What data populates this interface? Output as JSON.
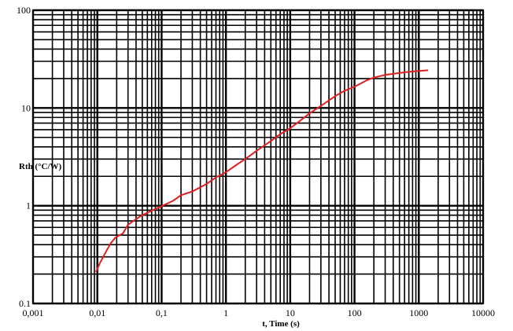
{
  "chart_data": {
    "type": "line",
    "xlabel": "t, Time (s)",
    "ylabel": "Rth (°C/W)",
    "x_scale": "log",
    "y_scale": "log",
    "xlim": [
      0.001,
      10000
    ],
    "ylim": [
      0.1,
      100
    ],
    "grid": true,
    "x_ticks": [
      "0,001",
      "0,01",
      "0,1",
      "1",
      "10",
      "100",
      "1000",
      "10000"
    ],
    "y_ticks": [
      "0.1",
      "1",
      "10",
      "100"
    ],
    "series": [
      {
        "color": "#e02020",
        "x": [
          0.0095,
          0.011,
          0.013,
          0.016,
          0.019,
          0.022,
          0.025,
          0.03,
          0.04,
          0.05,
          0.07,
          0.1,
          0.15,
          0.2,
          0.3,
          0.5,
          0.7,
          1,
          1.5,
          2,
          3,
          5,
          7,
          10,
          15,
          20,
          30,
          50,
          70,
          100,
          150,
          200,
          300,
          500,
          700,
          1000,
          1400
        ],
        "y": [
          0.21,
          0.26,
          0.32,
          0.41,
          0.47,
          0.5,
          0.52,
          0.64,
          0.73,
          0.8,
          0.89,
          0.99,
          1.12,
          1.28,
          1.4,
          1.67,
          1.95,
          2.2,
          2.65,
          3.0,
          3.65,
          4.6,
          5.4,
          6.2,
          7.6,
          8.8,
          10.5,
          13.2,
          15.0,
          16.5,
          19.0,
          20.5,
          21.8,
          22.8,
          23.4,
          23.9,
          24.3
        ]
      }
    ]
  }
}
